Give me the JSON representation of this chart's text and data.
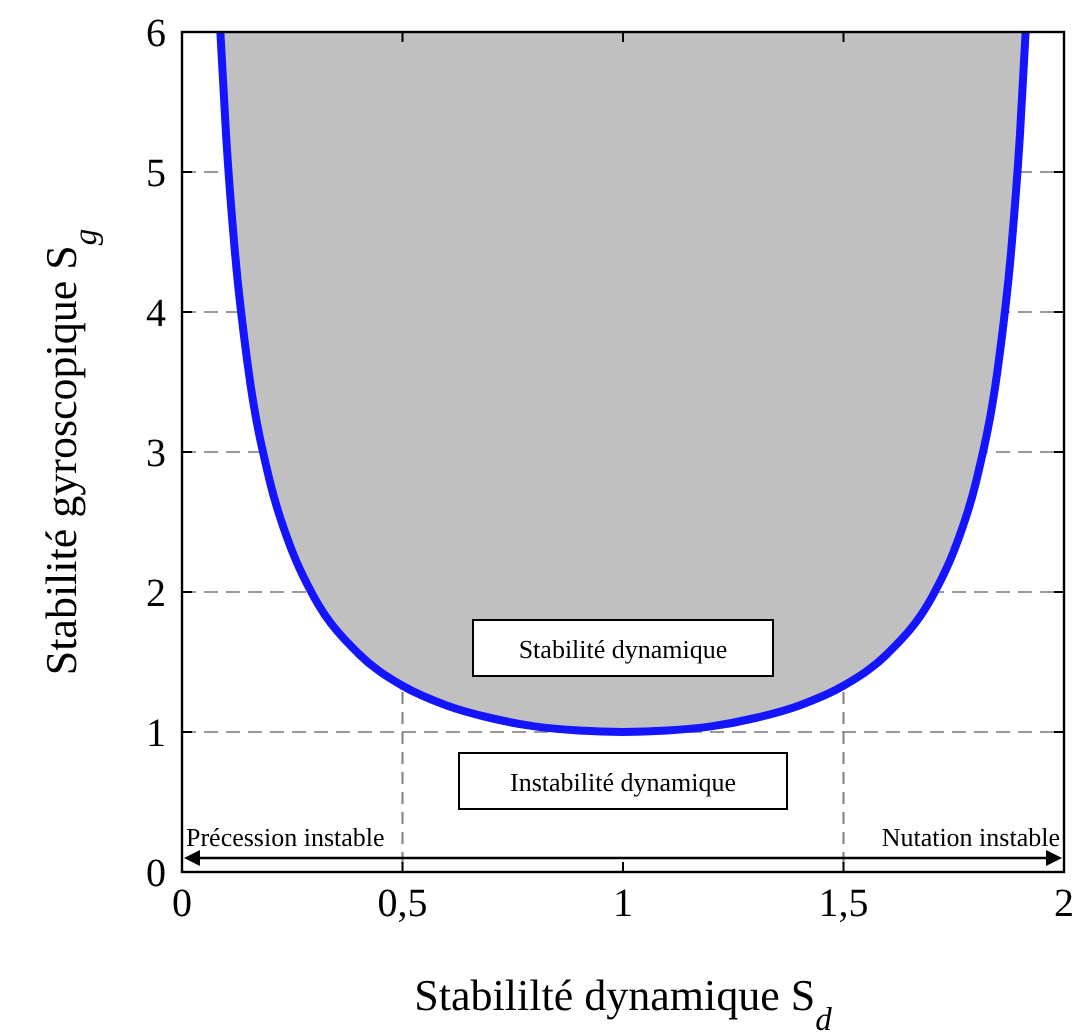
{
  "chart_data": {
    "type": "line",
    "xlabel": "Stabililté dynamique S$_{d}$",
    "ylabel": "Stabilité gyroscopique S$_{g}$",
    "xlim": [
      0,
      2
    ],
    "ylim": [
      0,
      6
    ],
    "xticks": [
      0,
      {
        "value": 0.5,
        "label": "0,5"
      },
      1,
      {
        "value": 1.5,
        "label": "1,5"
      },
      2
    ],
    "yticks": [
      0,
      1,
      2,
      3,
      4,
      5,
      6
    ],
    "grid": "y",
    "series": [
      {
        "color": "#1414ff",
        "x": [
          0.087,
          0.1,
          0.12,
          0.15,
          0.2,
          0.25,
          0.3,
          0.4,
          0.5,
          0.6,
          0.7,
          0.8,
          0.9,
          1,
          1.1,
          1.2,
          1.3,
          1.4,
          1.5,
          1.6,
          1.7,
          1.75,
          1.8,
          1.85,
          1.88,
          1.9,
          1.913
        ],
        "values": [
          6,
          5.26,
          4.43,
          3.6,
          2.78,
          2.29,
          1.96,
          1.56,
          1.33,
          1.19,
          1.1,
          1.04,
          1.01,
          1,
          1.01,
          1.04,
          1.1,
          1.19,
          1.33,
          1.56,
          1.96,
          2.29,
          2.78,
          3.6,
          4.43,
          5.26,
          6
        ]
      }
    ],
    "ref_lines": [
      {
        "axis": "x",
        "value": 0.5,
        "color": "#808080",
        "line_style": "dashed"
      },
      {
        "axis": "x",
        "value": 1.5,
        "color": "#808080",
        "line_style": "dashed"
      }
    ],
    "annotations": [
      "Stabilité dynamique",
      "Instabilité dynamique",
      "Précession instable",
      "Nutation instable"
    ]
  }
}
